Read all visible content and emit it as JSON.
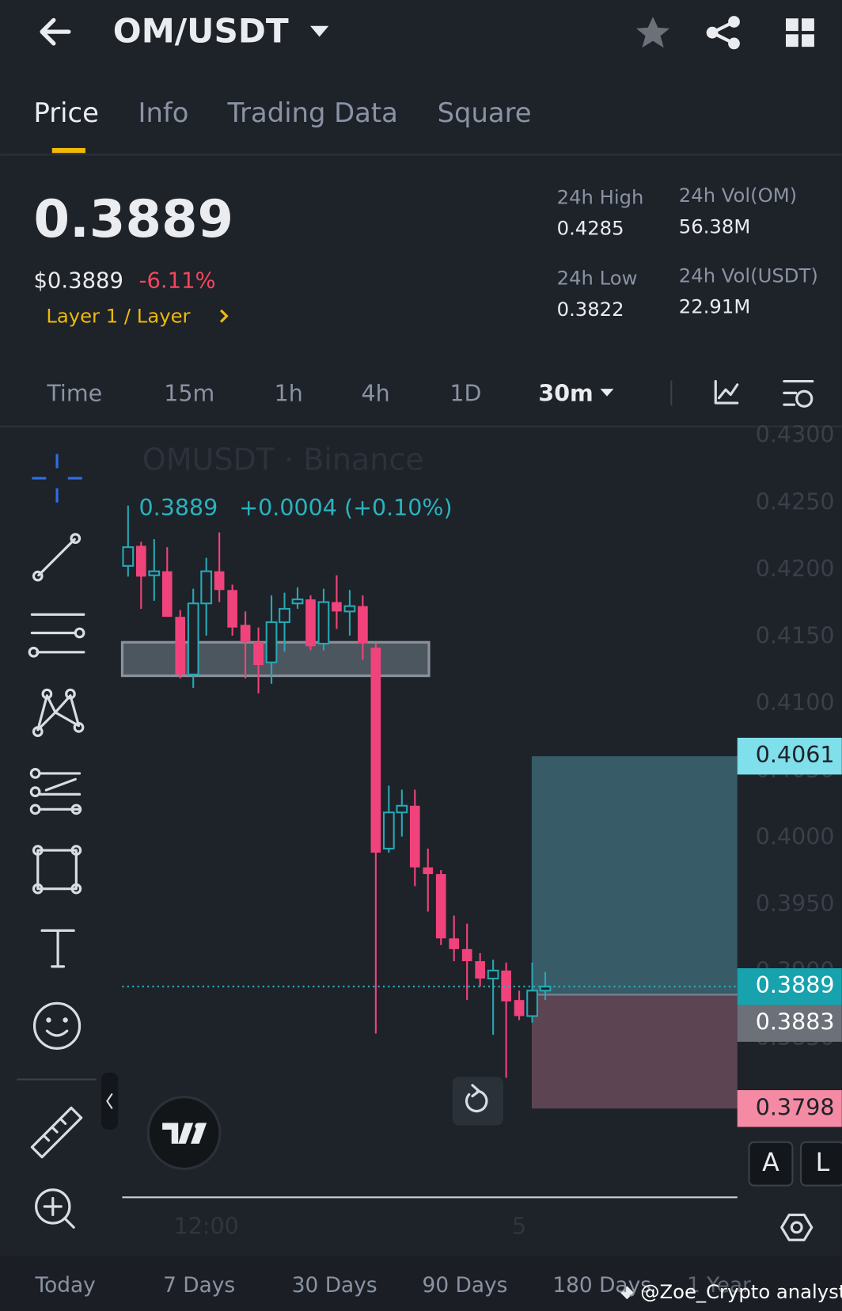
{
  "header": {
    "pair": "OM/USDT"
  },
  "tabs": [
    "Price",
    "Info",
    "Trading Data",
    "Square"
  ],
  "ticker": {
    "price": "0.3889",
    "usd_price": "$0.3889",
    "change": "-6.11%",
    "tag": "Layer 1 / Layer",
    "stats": [
      {
        "label": "24h High",
        "value": "0.4285"
      },
      {
        "label": "24h Low",
        "value": "0.3822"
      },
      {
        "label": "24h Vol(OM)",
        "value": "56.38M"
      },
      {
        "label": "24h Vol(USDT)",
        "value": "22.91M"
      }
    ]
  },
  "intervals": [
    "Time",
    "15m",
    "1h",
    "4h",
    "1D",
    "30m"
  ],
  "chart_data": {
    "type": "candlestick",
    "title": "OMUSDT · Binance",
    "legend_price": "0.3889",
    "legend_change": "+0.0004 (+0.10%)",
    "categories": [
      null,
      null,
      null,
      null,
      null,
      null,
      "12:00",
      null,
      null,
      null,
      null,
      null,
      null,
      null,
      null,
      null,
      null,
      null,
      null,
      null,
      null,
      null,
      null,
      null,
      null,
      null,
      null,
      null,
      null,
      null,
      "5",
      null,
      null
    ],
    "open": [
      0.4203,
      0.4218,
      0.4196,
      0.4199,
      0.4165,
      0.4122,
      0.4175,
      0.4199,
      0.4185,
      0.4159,
      0.4146,
      0.4131,
      0.4161,
      0.4175,
      0.4178,
      0.4145,
      0.4176,
      0.4169,
      0.4173,
      0.4142,
      0.3992,
      0.4019,
      0.4024,
      0.3978,
      0.3973,
      0.3925,
      0.3917,
      0.3908,
      0.3895,
      0.3901,
      0.3879,
      0.3867,
      0.3886
    ],
    "high": [
      0.4248,
      0.4221,
      0.4223,
      0.4217,
      0.417,
      0.4186,
      0.4209,
      0.4228,
      0.4189,
      0.4169,
      0.4157,
      0.4181,
      0.4183,
      0.4187,
      0.4181,
      0.4186,
      0.4196,
      0.4185,
      0.4181,
      0.4145,
      0.4039,
      0.4036,
      0.4036,
      0.3992,
      0.3976,
      0.3942,
      0.3936,
      0.3914,
      0.3909,
      0.3907,
      0.3886,
      0.3907,
      0.39
    ],
    "low": [
      0.4195,
      0.4171,
      0.4177,
      0.4165,
      0.4119,
      0.4112,
      0.4151,
      0.4176,
      0.4151,
      0.4119,
      0.4108,
      0.4115,
      0.4139,
      0.4171,
      0.414,
      0.414,
      0.4156,
      0.4151,
      0.4133,
      0.3854,
      0.3989,
      0.4001,
      0.3964,
      0.3945,
      0.392,
      0.3908,
      0.3879,
      0.3889,
      0.3853,
      0.3821,
      0.3864,
      0.3862,
      0.3879
    ],
    "close": [
      0.4217,
      0.4195,
      0.4199,
      0.4165,
      0.4122,
      0.4175,
      0.4199,
      0.4185,
      0.4157,
      0.4146,
      0.4129,
      0.4161,
      0.4171,
      0.4178,
      0.4143,
      0.4176,
      0.4169,
      0.4173,
      0.4145,
      0.3989,
      0.4019,
      0.4024,
      0.3978,
      0.3973,
      0.3925,
      0.3917,
      0.3908,
      0.3895,
      0.3901,
      0.3878,
      0.3867,
      0.3886,
      0.3889
    ],
    "up_color": "#26a8b4",
    "down_color": "#f0437c",
    "ylim": [
      0.3733,
      0.4304
    ],
    "yticks": [
      {
        "value": 0.43,
        "label": "0.4300"
      },
      {
        "value": 0.425,
        "label": "0.4250"
      },
      {
        "value": 0.42,
        "label": "0.4200"
      },
      {
        "value": 0.415,
        "label": "0.4150"
      },
      {
        "value": 0.41,
        "label": "0.4100"
      },
      {
        "value": 0.405,
        "label": "0.4050"
      },
      {
        "value": 0.4,
        "label": "0.4000"
      },
      {
        "value": 0.395,
        "label": "0.3950"
      },
      {
        "value": 0.39,
        "label": "0.3900"
      },
      {
        "value": 0.385,
        "label": "0.3850"
      }
    ],
    "zone": {
      "top": 0.4146,
      "bottom": 0.4121
    },
    "position": {
      "target": 0.4061,
      "current": 0.3889,
      "entry": 0.3883,
      "stop": 0.3798
    },
    "axis_buttons": [
      "A",
      "L"
    ]
  },
  "ranges": [
    "Today",
    "7 Days",
    "30 Days",
    "90 Days",
    "180 Days",
    "1 Year"
  ],
  "watermark": "@Zoe_Crypto analyst"
}
